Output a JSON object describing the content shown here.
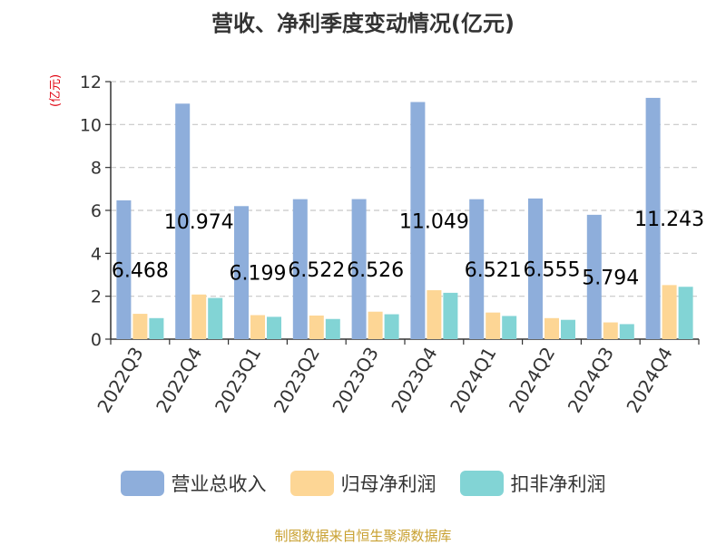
{
  "chart_data": {
    "type": "bar",
    "title": "营收、净利季度变动情况(亿元)",
    "ylabel": "(亿元)",
    "xlabel": "",
    "categories": [
      "2022Q3",
      "2022Q4",
      "2023Q1",
      "2023Q2",
      "2023Q3",
      "2023Q4",
      "2024Q1",
      "2024Q2",
      "2024Q3",
      "2024Q4"
    ],
    "ylim": [
      0,
      12
    ],
    "yticks": [
      0,
      2,
      4,
      6,
      8,
      10,
      12
    ],
    "grid": true,
    "legend_position": "bottom",
    "series": [
      {
        "name": "营业总收入",
        "color": "#8eaedb",
        "values": [
          6.468,
          10.974,
          6.199,
          6.522,
          6.526,
          11.049,
          6.521,
          6.555,
          5.794,
          11.243
        ]
      },
      {
        "name": "归母净利润",
        "color": "#fdd695",
        "values": [
          1.18,
          2.08,
          1.12,
          1.1,
          1.28,
          2.28,
          1.24,
          0.98,
          0.78,
          2.52
        ]
      },
      {
        "name": "扣非净利润",
        "color": "#82d4d5",
        "values": [
          0.98,
          1.92,
          1.04,
          0.94,
          1.16,
          2.16,
          1.08,
          0.9,
          0.7,
          2.44
        ]
      }
    ],
    "data_labels": [
      "6.468",
      "10.974",
      "6.199",
      "6.522",
      "6.526",
      "11.049",
      "6.521",
      "6.555",
      "5.794",
      "11.243"
    ]
  },
  "source": "制图数据来自恒生聚源数据库"
}
